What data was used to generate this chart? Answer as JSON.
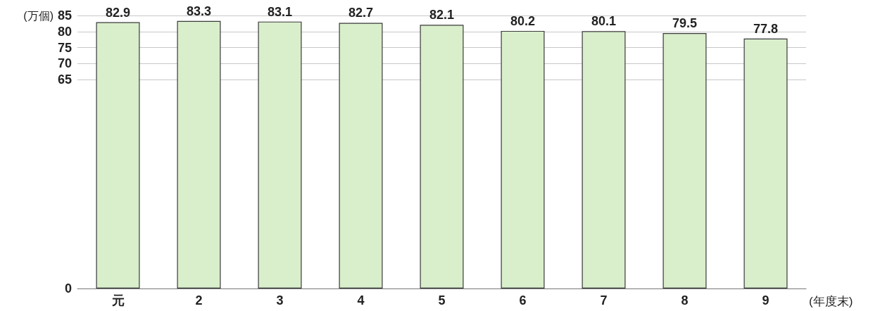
{
  "chart_data": {
    "type": "bar",
    "ylabel": "(万個)",
    "xlabel": "(年度末)",
    "categories": [
      "元",
      "2",
      "3",
      "4",
      "5",
      "6",
      "7",
      "8",
      "9"
    ],
    "values": [
      82.9,
      83.3,
      83.1,
      82.7,
      82.1,
      80.2,
      80.1,
      79.5,
      77.8
    ],
    "color": "#d9eecb",
    "ylim": [
      0,
      85
    ],
    "yticks": [
      0,
      65,
      70,
      75,
      80,
      85
    ],
    "grid": "y",
    "data_labels": true
  }
}
